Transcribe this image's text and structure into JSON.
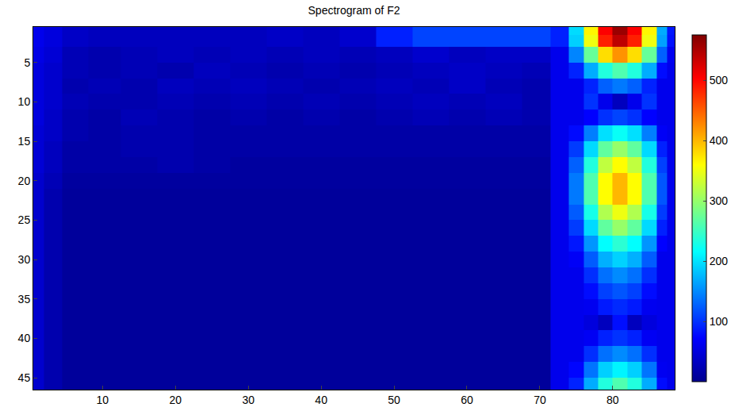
{
  "chart_data": {
    "type": "heatmap",
    "title": "Spectrogram of F2",
    "x": [
      1,
      3,
      6,
      10,
      15,
      20,
      25,
      30,
      35,
      40,
      45,
      50,
      55,
      60,
      65,
      70,
      73,
      75,
      77,
      79,
      81,
      83,
      85,
      87,
      88
    ],
    "y": [
      1,
      2,
      4,
      6,
      8,
      10,
      12,
      14,
      16,
      18,
      20,
      22,
      24,
      26,
      28,
      30,
      32,
      34,
      36,
      38,
      40,
      42,
      44,
      46
    ],
    "xlim": [
      0.5,
      88.5
    ],
    "ylim": [
      46.5,
      0.5
    ],
    "xticks": [
      10,
      20,
      30,
      40,
      50,
      60,
      70,
      80
    ],
    "yticks": [
      5,
      10,
      15,
      20,
      25,
      30,
      35,
      40,
      45
    ],
    "colorbar_range": [
      0,
      575
    ],
    "colorbar_ticks": [
      100,
      200,
      300,
      400,
      500
    ],
    "grid": false,
    "cells": [
      [
        60,
        50,
        35,
        30,
        30,
        30,
        30,
        30,
        35,
        30,
        40,
        90,
        110,
        110,
        110,
        110,
        90,
        196,
        364,
        504,
        560,
        504,
        364,
        168,
        84
      ],
      [
        60,
        50,
        35,
        30,
        30,
        30,
        30,
        30,
        35,
        30,
        40,
        90,
        110,
        110,
        110,
        110,
        90,
        189,
        351,
        486,
        540,
        486,
        351,
        162,
        81
      ],
      [
        55,
        45,
        25,
        20,
        25,
        30,
        25,
        30,
        25,
        30,
        25,
        30,
        40,
        30,
        35,
        35,
        60,
        147,
        273,
        378,
        420,
        378,
        273,
        126,
        63
      ],
      [
        50,
        40,
        25,
        20,
        25,
        20,
        30,
        25,
        20,
        25,
        20,
        25,
        30,
        35,
        30,
        25,
        60,
        91,
        169,
        234,
        260,
        234,
        169,
        78,
        60
      ],
      [
        50,
        40,
        20,
        25,
        20,
        30,
        25,
        30,
        25,
        20,
        25,
        30,
        25,
        35,
        25,
        20,
        60,
        60,
        91,
        126,
        140,
        126,
        91,
        60,
        60
      ],
      [
        50,
        40,
        25,
        20,
        20,
        25,
        20,
        25,
        20,
        25,
        20,
        25,
        30,
        25,
        30,
        20,
        60,
        60,
        100,
        60,
        30,
        60,
        100,
        60,
        60
      ],
      [
        50,
        35,
        20,
        15,
        25,
        20,
        15,
        20,
        15,
        20,
        15,
        20,
        25,
        20,
        25,
        20,
        60,
        60,
        72,
        99,
        110,
        99,
        72,
        60,
        60
      ],
      [
        45,
        35,
        20,
        15,
        20,
        20,
        15,
        15,
        15,
        15,
        15,
        15,
        15,
        15,
        15,
        15,
        60,
        77,
        143,
        198,
        220,
        198,
        143,
        66,
        60
      ],
      [
        45,
        30,
        15,
        15,
        20,
        20,
        15,
        15,
        15,
        15,
        15,
        15,
        15,
        15,
        15,
        15,
        60,
        105,
        195,
        270,
        300,
        270,
        195,
        90,
        60
      ],
      [
        45,
        30,
        15,
        15,
        15,
        20,
        15,
        10,
        10,
        10,
        10,
        10,
        10,
        10,
        10,
        10,
        60,
        126,
        234,
        324,
        360,
        324,
        234,
        108,
        60
      ],
      [
        40,
        25,
        10,
        10,
        10,
        10,
        10,
        10,
        10,
        10,
        10,
        10,
        10,
        10,
        10,
        10,
        60,
        140,
        260,
        360,
        400,
        360,
        260,
        120,
        60
      ],
      [
        40,
        20,
        8,
        8,
        8,
        8,
        8,
        8,
        8,
        8,
        8,
        8,
        8,
        8,
        8,
        8,
        60,
        140,
        260,
        360,
        400,
        360,
        260,
        120,
        60
      ],
      [
        40,
        20,
        8,
        8,
        8,
        8,
        8,
        8,
        8,
        8,
        8,
        8,
        8,
        8,
        8,
        8,
        60,
        123,
        228,
        315,
        350,
        315,
        228,
        105,
        60
      ],
      [
        40,
        20,
        8,
        8,
        8,
        8,
        8,
        8,
        8,
        8,
        8,
        8,
        8,
        8,
        8,
        8,
        60,
        105,
        195,
        270,
        300,
        270,
        195,
        90,
        60
      ],
      [
        40,
        20,
        8,
        8,
        8,
        8,
        8,
        8,
        8,
        8,
        8,
        8,
        8,
        8,
        8,
        8,
        60,
        84,
        156,
        216,
        240,
        216,
        156,
        72,
        60
      ],
      [
        40,
        20,
        8,
        8,
        8,
        8,
        8,
        8,
        8,
        8,
        8,
        8,
        8,
        8,
        8,
        8,
        60,
        67,
        124,
        171,
        190,
        171,
        124,
        60,
        60
      ],
      [
        40,
        20,
        8,
        8,
        8,
        8,
        8,
        8,
        8,
        8,
        8,
        8,
        8,
        8,
        8,
        8,
        60,
        60,
        98,
        135,
        150,
        135,
        98,
        60,
        60
      ],
      [
        40,
        20,
        8,
        8,
        8,
        8,
        8,
        8,
        8,
        8,
        8,
        8,
        8,
        8,
        8,
        8,
        60,
        60,
        78,
        108,
        120,
        108,
        78,
        60,
        60
      ],
      [
        40,
        20,
        8,
        8,
        8,
        8,
        8,
        8,
        8,
        8,
        8,
        8,
        8,
        8,
        8,
        8,
        60,
        60,
        62,
        86,
        95,
        86,
        62,
        60,
        60
      ],
      [
        40,
        20,
        8,
        8,
        8,
        8,
        8,
        8,
        8,
        8,
        8,
        8,
        8,
        8,
        8,
        8,
        60,
        60,
        50,
        30,
        80,
        30,
        50,
        60,
        60
      ],
      [
        40,
        20,
        8,
        8,
        8,
        8,
        8,
        8,
        8,
        8,
        8,
        8,
        8,
        8,
        8,
        8,
        60,
        60,
        65,
        90,
        100,
        90,
        65,
        60,
        60
      ],
      [
        40,
        20,
        8,
        8,
        8,
        8,
        8,
        8,
        8,
        8,
        8,
        8,
        8,
        8,
        8,
        8,
        60,
        60,
        98,
        135,
        150,
        135,
        98,
        60,
        60
      ],
      [
        40,
        20,
        8,
        8,
        8,
        8,
        8,
        8,
        8,
        8,
        8,
        8,
        8,
        8,
        8,
        8,
        60,
        74,
        137,
        189,
        210,
        189,
        137,
        63,
        60
      ],
      [
        40,
        20,
        8,
        8,
        8,
        8,
        8,
        8,
        8,
        8,
        8,
        8,
        8,
        8,
        8,
        8,
        60,
        91,
        169,
        234,
        260,
        234,
        169,
        78,
        60
      ]
    ]
  }
}
